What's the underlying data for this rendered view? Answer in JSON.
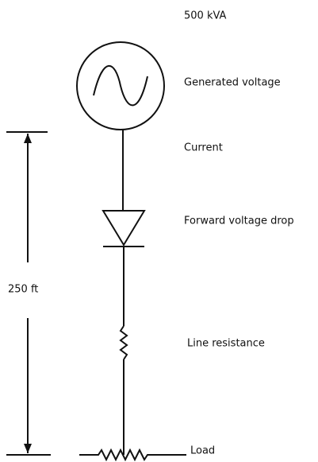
{
  "diagram": {
    "labels": {
      "rating": "500 kVA",
      "generated_voltage": "Generated voltage",
      "current": "Current",
      "forward_voltage_drop": "Forward voltage drop",
      "line_resistance": "Line resistance",
      "load": "Load",
      "distance": "250 ft"
    }
  }
}
